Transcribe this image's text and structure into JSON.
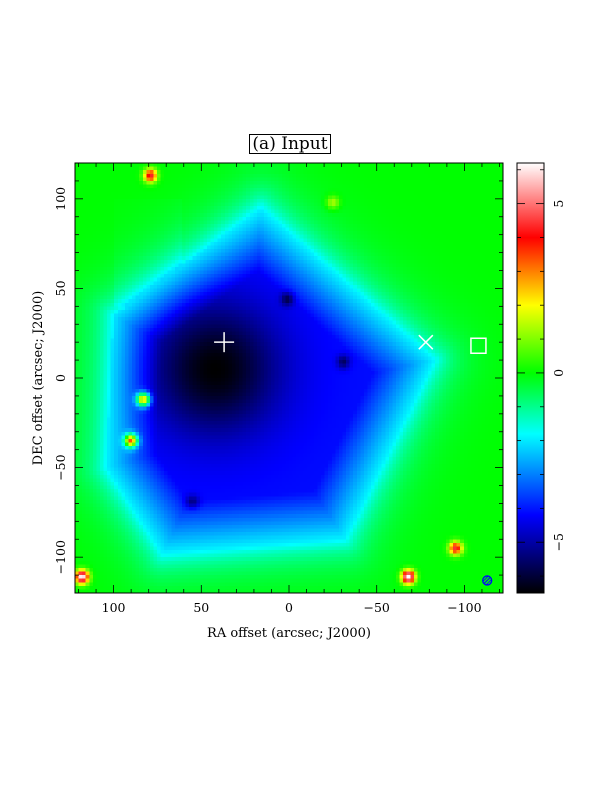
{
  "chart_data": {
    "type": "heatmap",
    "title": "(a) Input",
    "xlabel": "RA offset (arcsec; J2000)",
    "ylabel": "DEC offset (arcsec; J2000)",
    "xlim": [
      122,
      -122
    ],
    "ylim": [
      -120,
      120
    ],
    "x_ticks": [
      100,
      50,
      0,
      -50,
      -100
    ],
    "y_ticks": [
      100,
      50,
      0,
      -50,
      -100
    ],
    "x_tick_labels": [
      "100",
      "50",
      "0",
      "−50",
      "−100"
    ],
    "y_tick_labels": [
      "100",
      "50",
      "0",
      "−50",
      "−100"
    ],
    "colorbar": {
      "range": [
        -6.5,
        6.2
      ],
      "ticks": [
        -5,
        0,
        5
      ],
      "tick_labels": [
        "−5",
        "0",
        "5"
      ]
    },
    "colormap": [
      "#000000",
      "#0000ff",
      "#00ffff",
      "#00ff00",
      "#ffff00",
      "#ff0000",
      "#ffffff"
    ],
    "background_level": 0,
    "depression": {
      "vertices": [
        [
          16,
          95
        ],
        [
          -83,
          10
        ],
        [
          -32,
          -90
        ],
        [
          72,
          -98
        ],
        [
          104,
          -50
        ],
        [
          100,
          35
        ]
      ],
      "core": [
        42,
        5
      ],
      "min_value": -6.5
    },
    "sources": [
      {
        "x": 79,
        "y": 113,
        "peak": 4.5
      },
      {
        "x": -25,
        "y": 98,
        "peak": 1.5
      },
      {
        "x": 1,
        "y": 44,
        "peak": -1.5
      },
      {
        "x": -31,
        "y": 9,
        "peak": -1.5
      },
      {
        "x": 83,
        "y": -12,
        "peak": 6.5
      },
      {
        "x": 90,
        "y": -35,
        "peak": 6.5
      },
      {
        "x": 55,
        "y": -69,
        "peak": -1.2
      },
      {
        "x": -95,
        "y": -95,
        "peak": 4.5
      },
      {
        "x": 118,
        "y": -111,
        "peak": 6.5
      },
      {
        "x": -68,
        "y": -111,
        "peak": 6.5
      }
    ],
    "markers": [
      {
        "symbol": "plus",
        "x": 37,
        "y": 20,
        "color": "#ffffff"
      },
      {
        "symbol": "cross",
        "x": -78,
        "y": 20,
        "color": "#ffffff"
      },
      {
        "symbol": "square",
        "x": -108,
        "y": 18,
        "color": "#ffffff"
      },
      {
        "symbol": "beam",
        "x": -113,
        "y": -113,
        "color": "#0000ff"
      }
    ]
  }
}
